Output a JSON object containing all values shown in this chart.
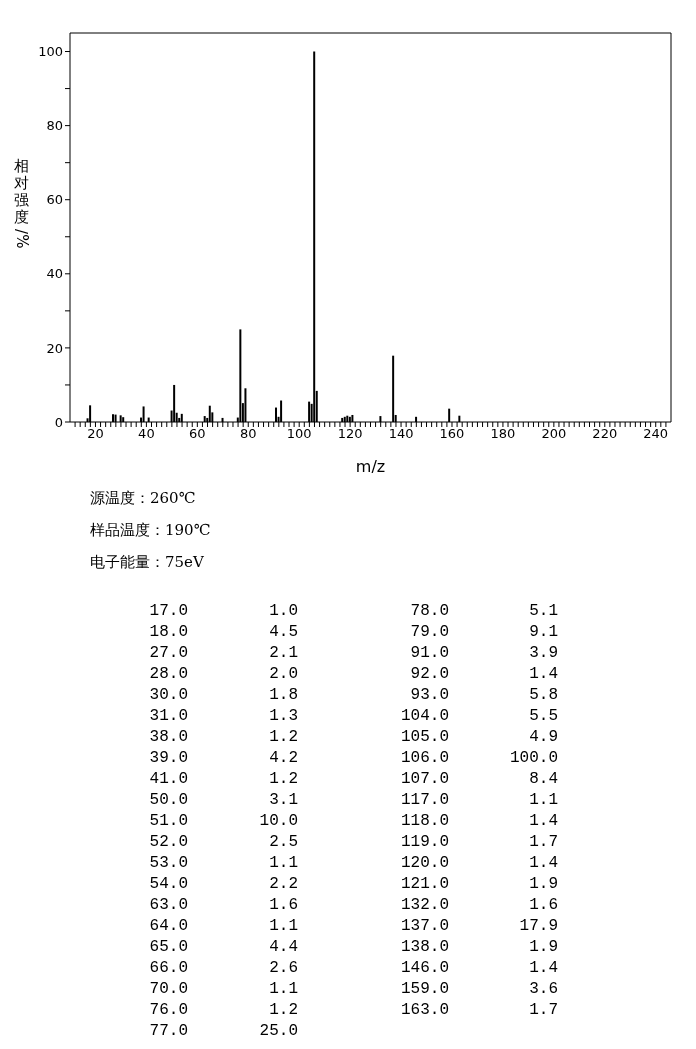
{
  "chart_data": [
    {
      "type": "bar",
      "xlabel": "m/z",
      "ylabel": "相对强度/%",
      "x": [
        17,
        18,
        27,
        28,
        30,
        31,
        38,
        39,
        41,
        50,
        51,
        52,
        53,
        54,
        63,
        64,
        65,
        66,
        70,
        76,
        77,
        78,
        79,
        91,
        92,
        93,
        104,
        105,
        106,
        107,
        117,
        118,
        119,
        120,
        121,
        132,
        137,
        138,
        146,
        159,
        163
      ],
      "values": [
        1.0,
        4.5,
        2.1,
        2.0,
        1.8,
        1.3,
        1.2,
        4.2,
        1.2,
        3.1,
        10.0,
        2.5,
        1.1,
        2.2,
        1.6,
        1.1,
        4.4,
        2.6,
        1.1,
        1.2,
        25.0,
        5.1,
        9.1,
        3.9,
        1.4,
        5.8,
        5.5,
        4.9,
        100.0,
        8.4,
        1.1,
        1.4,
        1.7,
        1.4,
        1.9,
        1.6,
        17.9,
        1.9,
        1.4,
        3.6,
        1.7
      ],
      "color": "#000000",
      "xlim": [
        10,
        246
      ],
      "xticks": [
        {
          "value": 12,
          "label": null
        },
        {
          "value": 14,
          "label": null
        },
        {
          "value": 16,
          "label": null
        },
        {
          "value": 18,
          "label": null
        },
        20,
        {
          "value": 22,
          "label": null
        },
        {
          "value": 24,
          "label": null
        },
        {
          "value": 26,
          "label": null
        },
        {
          "value": 28,
          "label": null
        },
        {
          "value": 30,
          "label": null
        },
        {
          "value": 32,
          "label": null
        },
        {
          "value": 34,
          "label": null
        },
        {
          "value": 36,
          "label": null
        },
        {
          "value": 38,
          "label": null
        },
        40,
        {
          "value": 42,
          "label": null
        },
        {
          "value": 44,
          "label": null
        },
        {
          "value": 46,
          "label": null
        },
        {
          "value": 48,
          "label": null
        },
        {
          "value": 50,
          "label": null
        },
        {
          "value": 52,
          "label": null
        },
        {
          "value": 54,
          "label": null
        },
        {
          "value": 56,
          "label": null
        },
        {
          "value": 58,
          "label": null
        },
        60,
        {
          "value": 62,
          "label": null
        },
        {
          "value": 64,
          "label": null
        },
        {
          "value": 66,
          "label": null
        },
        {
          "value": 68,
          "label": null
        },
        {
          "value": 70,
          "label": null
        },
        {
          "value": 72,
          "label": null
        },
        {
          "value": 74,
          "label": null
        },
        {
          "value": 76,
          "label": null
        },
        {
          "value": 78,
          "label": null
        },
        80,
        {
          "value": 82,
          "label": null
        },
        {
          "value": 84,
          "label": null
        },
        {
          "value": 86,
          "label": null
        },
        {
          "value": 88,
          "label": null
        },
        {
          "value": 90,
          "label": null
        },
        {
          "value": 92,
          "label": null
        },
        {
          "value": 94,
          "label": null
        },
        {
          "value": 96,
          "label": null
        },
        {
          "value": 98,
          "label": null
        },
        100,
        {
          "value": 102,
          "label": null
        },
        {
          "value": 104,
          "label": null
        },
        {
          "value": 106,
          "label": null
        },
        {
          "value": 108,
          "label": null
        },
        {
          "value": 110,
          "label": null
        },
        {
          "value": 112,
          "label": null
        },
        {
          "value": 114,
          "label": null
        },
        {
          "value": 116,
          "label": null
        },
        {
          "value": 118,
          "label": null
        },
        120,
        {
          "value": 122,
          "label": null
        },
        {
          "value": 124,
          "label": null
        },
        {
          "value": 126,
          "label": null
        },
        {
          "value": 128,
          "label": null
        },
        {
          "value": 130,
          "label": null
        },
        {
          "value": 132,
          "label": null
        },
        {
          "value": 134,
          "label": null
        },
        {
          "value": 136,
          "label": null
        },
        {
          "value": 138,
          "label": null
        },
        140,
        {
          "value": 142,
          "label": null
        },
        {
          "value": 144,
          "label": null
        },
        {
          "value": 146,
          "label": null
        },
        {
          "value": 148,
          "label": null
        },
        {
          "value": 150,
          "label": null
        },
        {
          "value": 152,
          "label": null
        },
        {
          "value": 154,
          "label": null
        },
        {
          "value": 156,
          "label": null
        },
        {
          "value": 158,
          "label": null
        },
        160,
        {
          "value": 162,
          "label": null
        },
        {
          "value": 164,
          "label": null
        },
        {
          "value": 166,
          "label": null
        },
        {
          "value": 168,
          "label": null
        },
        {
          "value": 170,
          "label": null
        },
        {
          "value": 172,
          "label": null
        },
        {
          "value": 174,
          "label": null
        },
        {
          "value": 176,
          "label": null
        },
        {
          "value": 178,
          "label": null
        },
        180,
        {
          "value": 182,
          "label": null
        },
        {
          "value": 184,
          "label": null
        },
        {
          "value": 186,
          "label": null
        },
        {
          "value": 188,
          "label": null
        },
        {
          "value": 190,
          "label": null
        },
        {
          "value": 192,
          "label": null
        },
        {
          "value": 194,
          "label": null
        },
        {
          "value": 196,
          "label": null
        },
        {
          "value": 198,
          "label": null
        },
        200,
        {
          "value": 202,
          "label": null
        },
        {
          "value": 204,
          "label": null
        },
        {
          "value": 206,
          "label": null
        },
        {
          "value": 208,
          "label": null
        },
        {
          "value": 210,
          "label": null
        },
        {
          "value": 212,
          "label": null
        },
        {
          "value": 214,
          "label": null
        },
        {
          "value": 216,
          "label": null
        },
        {
          "value": 218,
          "label": null
        },
        220,
        {
          "value": 222,
          "label": null
        },
        {
          "value": 224,
          "label": null
        },
        {
          "value": 226,
          "label": null
        },
        {
          "value": 228,
          "label": null
        },
        {
          "value": 230,
          "label": null
        },
        {
          "value": 232,
          "label": null
        },
        {
          "value": 234,
          "label": null
        },
        {
          "value": 236,
          "label": null
        },
        {
          "value": 238,
          "label": null
        },
        240,
        {
          "value": 242,
          "label": null
        },
        {
          "value": 244,
          "label": null
        }
      ],
      "ylim": [
        0,
        105
      ],
      "yticks": [
        0,
        {
          "value": 10,
          "label": null
        },
        20,
        {
          "value": 30,
          "label": null
        },
        40,
        {
          "value": 50,
          "label": null
        },
        60,
        {
          "value": 70,
          "label": null
        },
        80,
        {
          "value": 90,
          "label": null
        },
        100
      ],
      "grid": false,
      "annotations": [
        "源温度：260℃",
        "样品温度：190℃",
        "电子能量：75eV"
      ]
    },
    {
      "type": "other",
      "annotations": [
        "17.0",
        "1.0",
        "18.0",
        "4.5",
        "27.0",
        "2.1",
        "28.0",
        "2.0",
        "30.0",
        "1.8",
        "31.0",
        "1.3",
        "38.0",
        "1.2",
        "39.0",
        "4.2",
        "41.0",
        "1.2",
        "50.0",
        "3.1",
        "51.0",
        "10.0",
        "52.0",
        "2.5",
        "53.0",
        "1.1",
        "54.0",
        "2.2",
        "63.0",
        "1.6",
        "64.0",
        "1.1",
        "65.0",
        "4.4",
        "66.0",
        "2.6",
        "70.0",
        "1.1",
        "76.0",
        "1.2",
        "77.0",
        "25.0",
        "78.0",
        "5.1",
        "79.0",
        "9.1",
        "91.0",
        "3.9",
        "92.0",
        "1.4",
        "93.0",
        "5.8",
        "104.0",
        "5.5",
        "105.0",
        "4.9",
        "106.0",
        "100.0",
        "107.0",
        "8.4",
        "117.0",
        "1.1",
        "118.0",
        "1.4",
        "119.0",
        "1.7",
        "120.0",
        "1.4",
        "121.0",
        "1.9",
        "132.0",
        "1.6",
        "137.0",
        "17.9",
        "138.0",
        "1.9",
        "146.0",
        "1.4",
        "159.0",
        "3.6",
        "163.0",
        "1.7"
      ]
    }
  ]
}
